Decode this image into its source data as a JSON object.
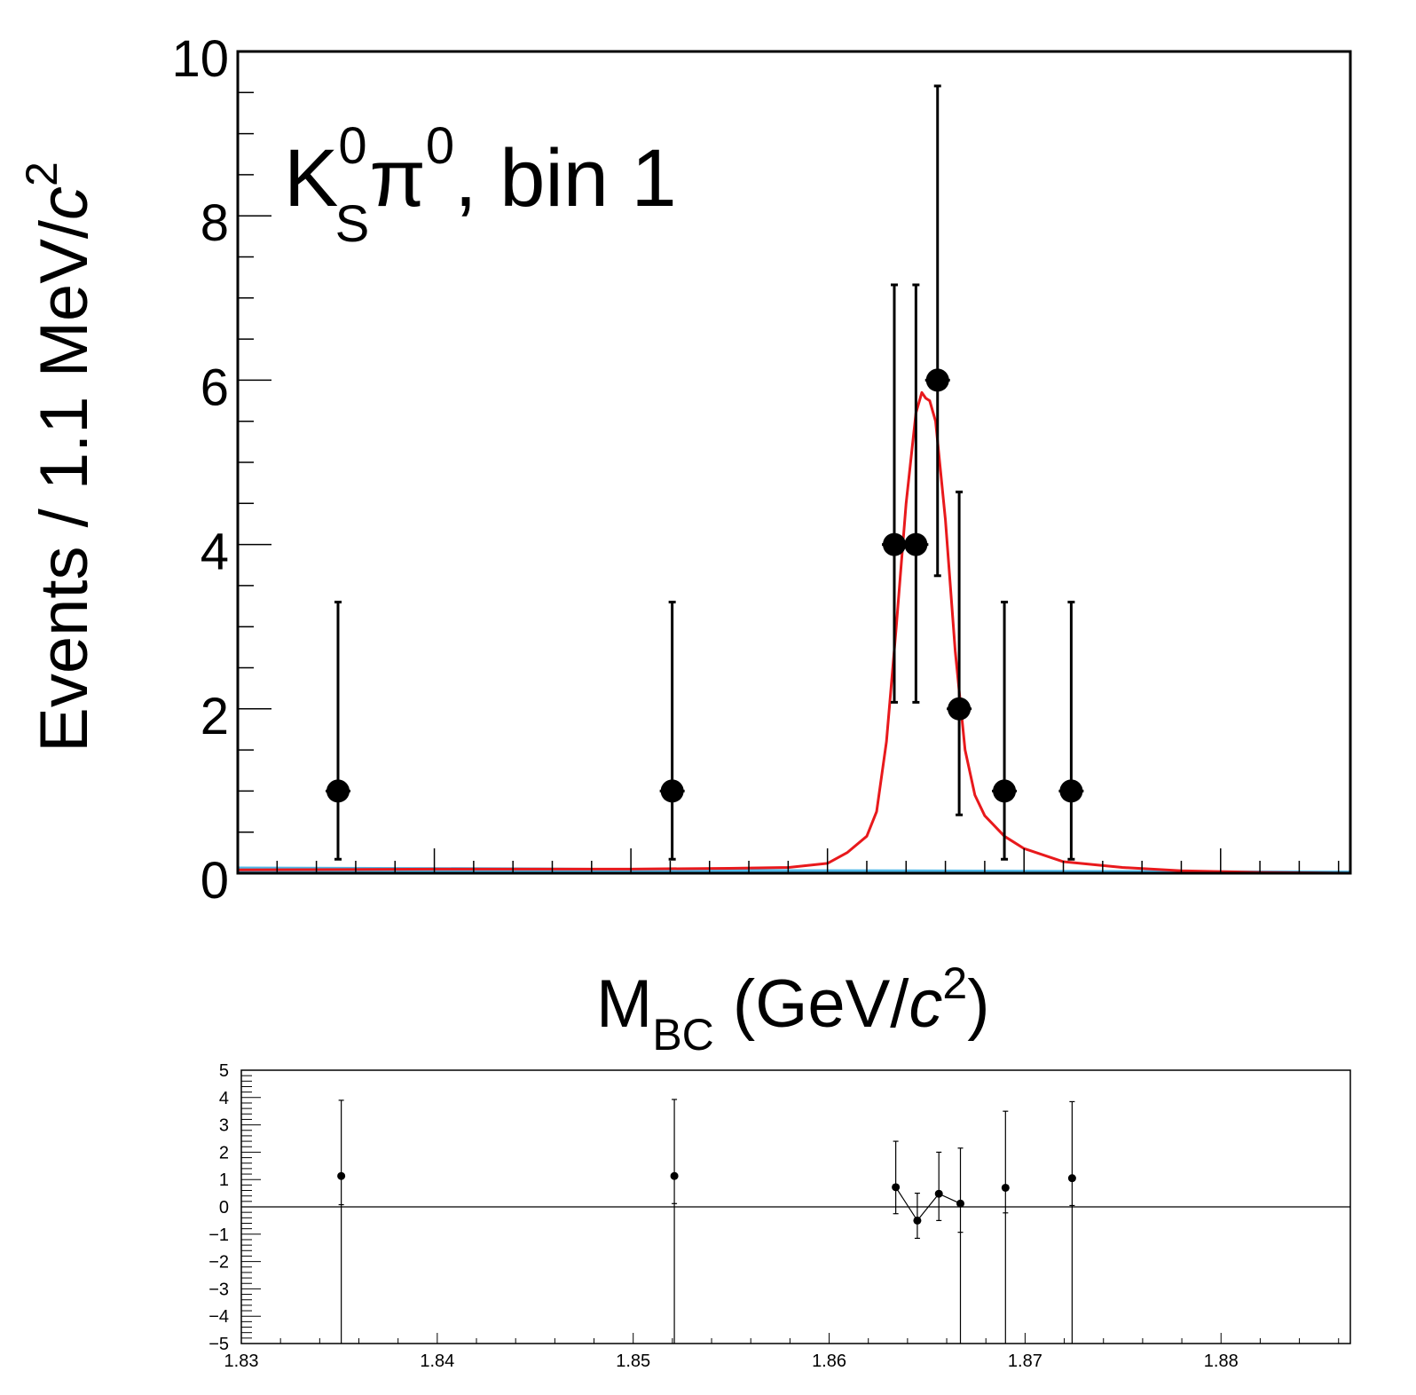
{
  "chart_data": [
    {
      "type": "scatter",
      "panel": "main",
      "annotation": {
        "particle1": "K",
        "particle1_sup": "0",
        "particle1_sub": "S",
        "particle2": "π",
        "particle2_sup": "0",
        "suffix": ", bin 1"
      },
      "ylabel": {
        "main": "Events / 1.1 MeV/",
        "italic": "c",
        "sup": "2"
      },
      "xlabel": {
        "main": "M",
        "sub": "BC",
        "open": " (GeV/",
        "italic": "c",
        "sup": "2",
        "close": ")"
      },
      "xlim": [
        1.83,
        1.8866
      ],
      "ylim": [
        0,
        10
      ],
      "y_ticks": [
        "0",
        "2",
        "4",
        "6",
        "8",
        "10"
      ],
      "y_tick_values": [
        0,
        2,
        4,
        6,
        8,
        10
      ],
      "series": [
        {
          "kind": "data",
          "color": "#000000",
          "points": [
            {
              "x": 1.8351,
              "y": 1,
              "ylo": 0.17,
              "yhi": 3.3
            },
            {
              "x": 1.8521,
              "y": 1,
              "ylo": 0.17,
              "yhi": 3.3
            },
            {
              "x": 1.8634,
              "y": 4,
              "ylo": 2.08,
              "yhi": 7.16
            },
            {
              "x": 1.8645,
              "y": 4,
              "ylo": 2.08,
              "yhi": 7.16
            },
            {
              "x": 1.8656,
              "y": 6,
              "ylo": 3.62,
              "yhi": 9.58
            },
            {
              "x": 1.8667,
              "y": 2,
              "ylo": 0.71,
              "yhi": 4.64
            },
            {
              "x": 1.869,
              "y": 1,
              "ylo": 0.17,
              "yhi": 3.3
            },
            {
              "x": 1.8724,
              "y": 1,
              "ylo": 0.17,
              "yhi": 3.3
            }
          ]
        },
        {
          "kind": "fit",
          "color": "#e8191c",
          "x": [
            1.83,
            1.84,
            1.85,
            1.855,
            1.858,
            1.86,
            1.861,
            1.862,
            1.8625,
            1.863,
            1.8635,
            1.864,
            1.8645,
            1.8648,
            1.865,
            1.8652,
            1.8655,
            1.866,
            1.8665,
            1.867,
            1.8675,
            1.868,
            1.869,
            1.87,
            1.872,
            1.875,
            1.878,
            1.882,
            1.8866
          ],
          "y": [
            0.04,
            0.05,
            0.05,
            0.06,
            0.07,
            0.12,
            0.25,
            0.45,
            0.75,
            1.6,
            3.0,
            4.5,
            5.6,
            5.85,
            5.78,
            5.75,
            5.5,
            4.3,
            2.7,
            1.5,
            0.95,
            0.7,
            0.45,
            0.3,
            0.14,
            0.07,
            0.03,
            0.01,
            0.0
          ]
        },
        {
          "kind": "background",
          "color": "#4fb8e8",
          "x": [
            1.83,
            1.845,
            1.855,
            1.8866
          ],
          "y": [
            0.07,
            0.06,
            0.04,
            0.02
          ]
        }
      ]
    },
    {
      "type": "scatter",
      "panel": "residual",
      "xlim": [
        1.83,
        1.8866
      ],
      "ylim": [
        -5,
        5
      ],
      "x_ticks": [
        "1.83",
        "1.84",
        "1.85",
        "1.86",
        "1.87",
        "1.88"
      ],
      "x_tick_values": [
        1.83,
        1.84,
        1.85,
        1.86,
        1.87,
        1.88
      ],
      "y_ticks": [
        "5",
        "4",
        "3",
        "2",
        "1",
        "0",
        "−1",
        "−2",
        "−3",
        "−4",
        "−5"
      ],
      "y_tick_values": [
        5,
        4,
        3,
        2,
        1,
        0,
        -1,
        -2,
        -3,
        -4,
        -5
      ],
      "series": [
        {
          "kind": "pull",
          "color": "#000000",
          "connected_indices": [
            2,
            3,
            4,
            5
          ],
          "points": [
            {
              "x": 1.8351,
              "y": 1.13,
              "ylo": -5.0,
              "yhi": 3.9,
              "mark": 0.08
            },
            {
              "x": 1.8521,
              "y": 1.13,
              "ylo": -5.0,
              "yhi": 3.93,
              "mark": 0.12
            },
            {
              "x": 1.8634,
              "y": 0.72,
              "ylo": -0.25,
              "yhi": 2.4,
              "mark": null
            },
            {
              "x": 1.8645,
              "y": -0.5,
              "ylo": -1.15,
              "yhi": 0.5,
              "mark": null
            },
            {
              "x": 1.8656,
              "y": 0.48,
              "ylo": -0.5,
              "yhi": 2.0,
              "mark": null
            },
            {
              "x": 1.8667,
              "y": 0.12,
              "ylo": -5.0,
              "yhi": 2.15,
              "mark": -0.93
            },
            {
              "x": 1.869,
              "y": 0.7,
              "ylo": -5.0,
              "yhi": 3.5,
              "mark": -0.22
            },
            {
              "x": 1.8724,
              "y": 1.05,
              "ylo": -5.0,
              "yhi": 3.85,
              "mark": 0.05
            }
          ]
        }
      ]
    }
  ]
}
